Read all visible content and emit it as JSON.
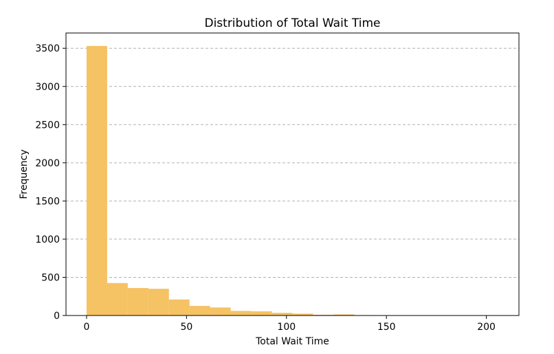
{
  "chart_data": {
    "type": "bar",
    "title": "Distribution of Total Wait Time",
    "xlabel": "Total Wait Time",
    "ylabel": "Frequency",
    "xlim": [
      -10.3,
      216.3
    ],
    "ylim": [
      0,
      3700
    ],
    "xticks": [
      0,
      50,
      100,
      150,
      200
    ],
    "yticks": [
      0,
      500,
      1000,
      1500,
      2000,
      2500,
      3000,
      3500
    ],
    "grid": "y dashed",
    "bar_color": "#f5c264",
    "bins": [
      {
        "x0": 0.0,
        "x1": 10.3,
        "value": 3530
      },
      {
        "x0": 10.3,
        "x1": 20.6,
        "value": 425
      },
      {
        "x0": 20.6,
        "x1": 30.9,
        "value": 360
      },
      {
        "x0": 30.9,
        "x1": 41.2,
        "value": 350
      },
      {
        "x0": 41.2,
        "x1": 51.5,
        "value": 210
      },
      {
        "x0": 51.5,
        "x1": 61.8,
        "value": 125
      },
      {
        "x0": 61.8,
        "x1": 72.1,
        "value": 105
      },
      {
        "x0": 72.1,
        "x1": 82.4,
        "value": 60
      },
      {
        "x0": 82.4,
        "x1": 92.7,
        "value": 55
      },
      {
        "x0": 92.7,
        "x1": 103.0,
        "value": 35
      },
      {
        "x0": 103.0,
        "x1": 113.3,
        "value": 25
      },
      {
        "x0": 113.3,
        "x1": 123.6,
        "value": 10
      },
      {
        "x0": 123.6,
        "x1": 133.9,
        "value": 15
      },
      {
        "x0": 133.9,
        "x1": 144.2,
        "value": 5
      },
      {
        "x0": 144.2,
        "x1": 154.5,
        "value": 3
      },
      {
        "x0": 154.5,
        "x1": 164.8,
        "value": 2
      },
      {
        "x0": 164.8,
        "x1": 175.1,
        "value": 2
      },
      {
        "x0": 175.1,
        "x1": 185.4,
        "value": 1
      },
      {
        "x0": 185.4,
        "x1": 195.7,
        "value": 1
      },
      {
        "x0": 195.7,
        "x1": 206.0,
        "value": 1
      }
    ]
  }
}
